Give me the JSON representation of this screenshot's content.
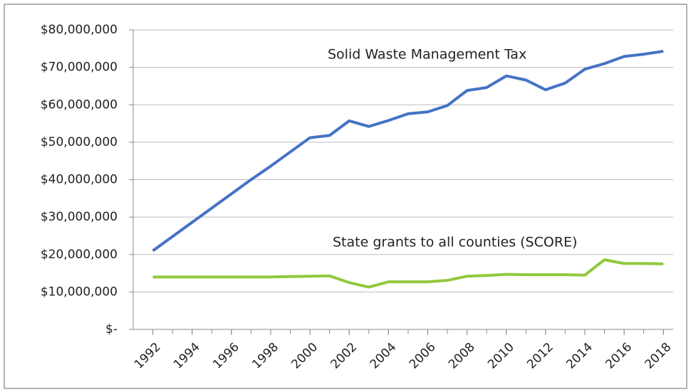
{
  "chart_data": {
    "type": "line",
    "x": [
      1992,
      1993,
      1994,
      1995,
      1996,
      1997,
      1998,
      1999,
      2000,
      2001,
      2002,
      2003,
      2004,
      2005,
      2006,
      2007,
      2008,
      2009,
      2010,
      2011,
      2012,
      2013,
      2014,
      2015,
      2016,
      2017,
      2018
    ],
    "series": [
      {
        "name": "Solid Waste Management Tax",
        "color": "#4472c4",
        "values": [
          21000000,
          24800000,
          28600000,
          32400000,
          36200000,
          40000000,
          43600000,
          47400000,
          51200000,
          51800000,
          55700000,
          54200000,
          55800000,
          57600000,
          58100000,
          59800000,
          63800000,
          64600000,
          67700000,
          66600000,
          64000000,
          65800000,
          69500000,
          71000000,
          72900000,
          73500000,
          74300000
        ]
      },
      {
        "name": "State grants to all counties (SCORE)",
        "color": "#92c83e",
        "values": [
          14000000,
          14000000,
          14000000,
          14000000,
          14000000,
          14000000,
          14000000,
          14100000,
          14200000,
          14300000,
          12500000,
          11300000,
          12700000,
          12700000,
          12700000,
          13100000,
          14200000,
          14400000,
          14700000,
          14600000,
          14600000,
          14600000,
          14500000,
          18600000,
          17600000,
          17600000,
          17500000
        ]
      }
    ],
    "xlim": [
      1991,
      2018.5
    ],
    "xticks": [
      1992,
      1994,
      1996,
      1998,
      2000,
      2002,
      2004,
      2006,
      2008,
      2010,
      2012,
      2014,
      2016,
      2018
    ],
    "ylim": [
      0,
      80000000
    ],
    "yticks": [
      {
        "value": 0,
        "label": "$-"
      },
      {
        "value": 10000000,
        "label": "$10,000,000"
      },
      {
        "value": 20000000,
        "label": "$20,000,000"
      },
      {
        "value": 30000000,
        "label": "$30,000,000"
      },
      {
        "value": 40000000,
        "label": "$40,000,000"
      },
      {
        "value": 50000000,
        "label": "$50,000,000"
      },
      {
        "value": 60000000,
        "label": "$60,000,000"
      },
      {
        "value": 70000000,
        "label": "$70,000,000"
      },
      {
        "value": 80000000,
        "label": "$80,000,000"
      }
    ],
    "grid": true
  }
}
